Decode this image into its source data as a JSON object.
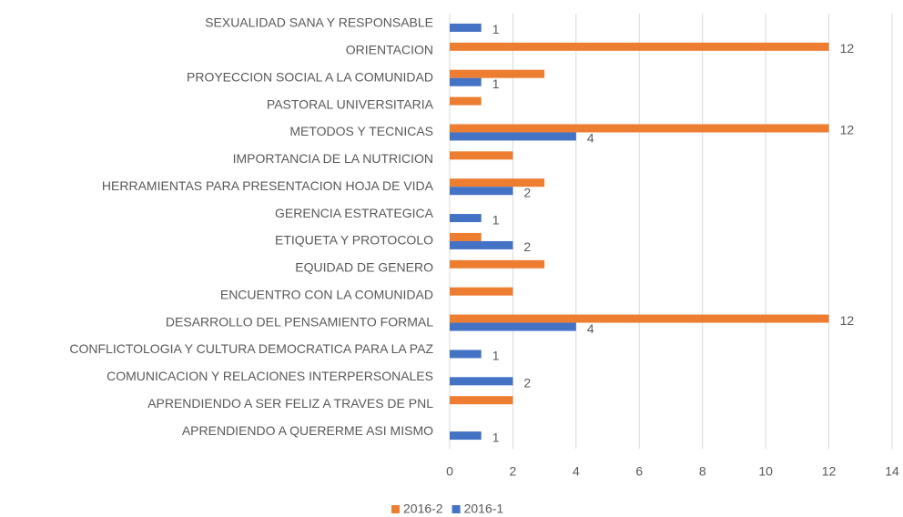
{
  "chart_data": {
    "type": "barh",
    "categories": [
      "SEXUALIDAD SANA Y RESPONSABLE",
      "ORIENTACION",
      "PROYECCION SOCIAL A LA COMUNIDAD",
      "PASTORAL UNIVERSITARIA",
      "METODOS Y TECNICAS",
      "IMPORTANCIA DE LA NUTRICION",
      "HERRAMIENTAS PARA PRESENTACION HOJA DE VIDA",
      "GERENCIA ESTRATEGICA",
      "ETIQUETA Y PROTOCOLO ",
      "EQUIDAD DE GENERO",
      "ENCUENTRO CON LA COMUNIDAD",
      "DESARROLLO DEL PENSAMIENTO FORMAL",
      "CONFLICTOLOGIA Y CULTURA DEMOCRATICA PARA LA PAZ",
      "COMUNICACION Y RELACIONES INTERPERSONALES",
      "APRENDIENDO A SER FELIZ A TRAVES DE PNL",
      "APRENDIENDO A QUERERME ASI MISMO"
    ],
    "series": [
      {
        "name": "2016-2",
        "color": "#ed7d31",
        "values": [
          null,
          12,
          3,
          1,
          12,
          2,
          3,
          null,
          1,
          3,
          2,
          12,
          null,
          null,
          2,
          null
        ],
        "value_labels": [
          null,
          "12",
          null,
          null,
          "12",
          null,
          null,
          null,
          null,
          null,
          null,
          "12",
          null,
          null,
          null,
          null
        ]
      },
      {
        "name": "2016-1",
        "color": "#4472c4",
        "values": [
          1,
          null,
          1,
          null,
          4,
          null,
          2,
          1,
          2,
          null,
          null,
          4,
          1,
          2,
          null,
          1
        ],
        "value_labels": [
          "1",
          null,
          "1",
          null,
          "4",
          null,
          "2",
          "1",
          "2",
          null,
          null,
          "4",
          "1",
          "2",
          null,
          "1"
        ]
      }
    ],
    "xlim": [
      0,
      14
    ],
    "xticks": [
      0,
      2,
      4,
      6,
      8,
      10,
      12,
      14
    ],
    "grid": true,
    "legend": "bottom"
  }
}
